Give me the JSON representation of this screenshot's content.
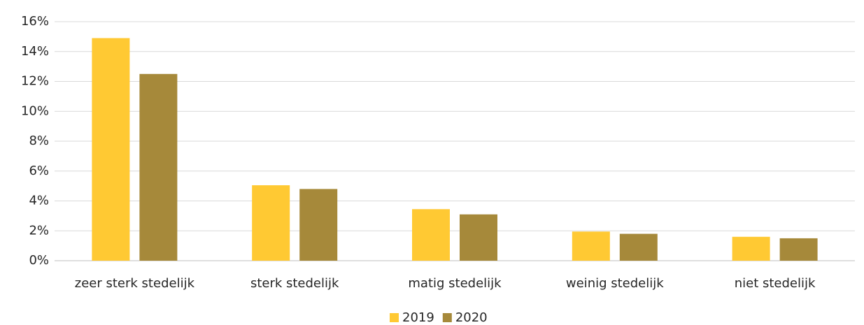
{
  "chart_data": {
    "type": "bar",
    "categories": [
      "zeer sterk stedelijk",
      "sterk stedelijk",
      "matig stedelijk",
      "weinig stedelijk",
      "niet stedelijk"
    ],
    "series": [
      {
        "name": "2019",
        "color": "#ffc933",
        "values": [
          14.9,
          5.05,
          3.45,
          1.95,
          1.6
        ]
      },
      {
        "name": "2020",
        "color": "#a6893a",
        "values": [
          12.5,
          4.8,
          3.1,
          1.8,
          1.5
        ]
      }
    ],
    "ylim": [
      0,
      16
    ],
    "yticks": [
      {
        "value": 0,
        "label": "0%"
      },
      {
        "value": 2,
        "label": "2%"
      },
      {
        "value": 4,
        "label": "4%"
      },
      {
        "value": 6,
        "label": "6%"
      },
      {
        "value": 8,
        "label": "8%"
      },
      {
        "value": 10,
        "label": "10%"
      },
      {
        "value": 12,
        "label": "12%"
      },
      {
        "value": 14,
        "label": "14%"
      },
      {
        "value": 16,
        "label": "16%"
      }
    ],
    "grid": true,
    "legend": "bottom"
  }
}
